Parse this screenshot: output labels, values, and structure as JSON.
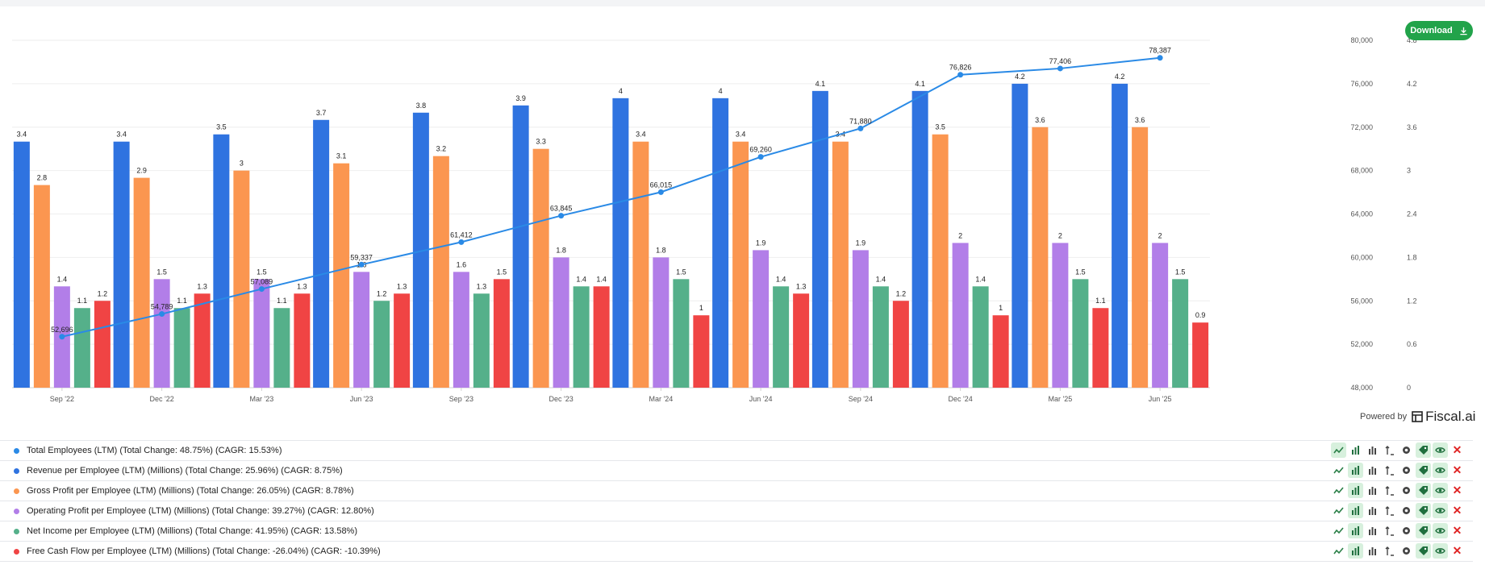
{
  "download": {
    "label": "Download",
    "icon": "download-icon",
    "color": "#22a34a"
  },
  "powered": {
    "prefix": "Powered by",
    "brand": "Fiscal.ai"
  },
  "chart_data": {
    "type": "bar",
    "categories": [
      "Sep '22",
      "Dec '22",
      "Mar '23",
      "Jun '23",
      "Sep '23",
      "Dec '23",
      "Mar '24",
      "Jun '24",
      "Sep '24",
      "Dec '24",
      "Mar '25",
      "Jun '25"
    ],
    "series": [
      {
        "name": "Revenue per Employee (LTM) (Millions)",
        "type": "bar",
        "axis": "right",
        "color": "#2f73e0",
        "values": [
          3.4,
          3.4,
          3.5,
          3.7,
          3.8,
          3.9,
          4,
          4,
          4.1,
          4.1,
          4.2,
          4.2
        ],
        "labels": [
          "3.4",
          "3.4",
          "3.5",
          "3.7",
          "3.8",
          "3.9",
          "4",
          "4",
          "4.1",
          "4.1",
          "4.2",
          "4.2"
        ]
      },
      {
        "name": "Gross Profit per Employee (LTM) (Millions)",
        "type": "bar",
        "axis": "right",
        "color": "#fb9650",
        "values": [
          2.8,
          2.9,
          3,
          3.1,
          3.2,
          3.3,
          3.4,
          3.4,
          3.4,
          3.5,
          3.6,
          3.6
        ],
        "labels": [
          "2.8",
          "2.9",
          "3",
          "3.1",
          "3.2",
          "3.3",
          "3.4",
          "3.4",
          "3.4",
          "3.5",
          "3.6",
          "3.6"
        ]
      },
      {
        "name": "Operating Profit per Employee (LTM) (Millions)",
        "type": "bar",
        "axis": "right",
        "color": "#b27ee8",
        "values": [
          1.4,
          1.5,
          1.5,
          1.6,
          1.6,
          1.8,
          1.8,
          1.9,
          1.9,
          2,
          2,
          2
        ],
        "labels": [
          "1.4",
          "1.5",
          "1.5",
          "1.6",
          "1.6",
          "1.8",
          "1.8",
          "1.9",
          "1.9",
          "2",
          "2",
          "2"
        ]
      },
      {
        "name": "Net Income per Employee (LTM) (Millions)",
        "type": "bar",
        "axis": "right",
        "color": "#55b08a",
        "values": [
          1.1,
          1.1,
          1.1,
          1.2,
          1.3,
          1.4,
          1.5,
          1.4,
          1.4,
          1.4,
          1.5,
          1.5
        ],
        "labels": [
          "1.1",
          "1.1",
          "1.1",
          "1.2",
          "1.3",
          "1.4",
          "1.5",
          "1.4",
          "1.4",
          "1.4",
          "1.5",
          "1.5"
        ]
      },
      {
        "name": "Free Cash Flow per Employee (LTM) (Millions)",
        "type": "bar",
        "axis": "right",
        "color": "#f04444",
        "values": [
          1.2,
          1.3,
          1.3,
          1.3,
          1.5,
          1.4,
          1,
          1.3,
          1.2,
          1,
          1.1,
          0.9
        ],
        "labels": [
          "1.2",
          "1.3",
          "1.3",
          "1.3",
          "1.5",
          "1.4",
          "1",
          "1.3",
          "1.2",
          "1",
          "1.1",
          "0.9"
        ]
      },
      {
        "name": "Total Employees (LTM)",
        "type": "line",
        "axis": "left",
        "color": "#2a8ae6",
        "values": [
          52696,
          54789,
          57089,
          59337,
          61412,
          63845,
          66015,
          69260,
          71880,
          76826,
          77406,
          78387
        ],
        "labels": [
          "52,696",
          "54,789",
          "57,089",
          "59,337",
          "61,412",
          "63,845",
          "66,015",
          "69,260",
          "71,880",
          "76,826",
          "77,406",
          "78,387"
        ]
      }
    ],
    "y_left": {
      "min": 48000,
      "max": 80000,
      "ticks": [
        "48,000",
        "52,000",
        "56,000",
        "60,000",
        "64,000",
        "68,000",
        "72,000",
        "76,000",
        "80,000"
      ]
    },
    "y_right": {
      "min": 0,
      "max": 4.8,
      "ticks": [
        "0",
        "0.6",
        "1.2",
        "1.8",
        "2.4",
        "3",
        "3.6",
        "4.2",
        "4.8"
      ]
    },
    "grid": true,
    "title": "",
    "xlabel": "",
    "ylabel": ""
  },
  "legend": [
    {
      "color": "#2a8ae6",
      "text": "Total Employees (LTM) (Total Change: 48.75%) (CAGR: 15.53%)",
      "active_tool": 0
    },
    {
      "color": "#2f73e0",
      "text": "Revenue per Employee (LTM) (Millions) (Total Change: 25.96%) (CAGR: 8.75%)",
      "active_tool": 1
    },
    {
      "color": "#fb9650",
      "text": "Gross Profit per Employee (LTM) (Millions) (Total Change: 26.05%) (CAGR: 8.78%)",
      "active_tool": 1
    },
    {
      "color": "#b27ee8",
      "text": "Operating Profit per Employee (LTM) (Millions) (Total Change: 39.27%) (CAGR: 12.80%)",
      "active_tool": 1
    },
    {
      "color": "#55b08a",
      "text": "Net Income per Employee (LTM) (Millions) (Total Change: 41.95%) (CAGR: 13.58%)",
      "active_tool": 1
    },
    {
      "color": "#f04444",
      "text": "Free Cash Flow per Employee (LTM) (Millions) (Total Change: -26.04%) (CAGR: -10.39%)",
      "active_tool": 1
    }
  ],
  "row_tools": [
    "line-chart-icon",
    "bar-chart-icon",
    "stacked-bar-icon",
    "axis-icon",
    "gear-icon",
    "tag-icon",
    "eye-icon",
    "close-icon"
  ],
  "remove_symbol": "✕"
}
